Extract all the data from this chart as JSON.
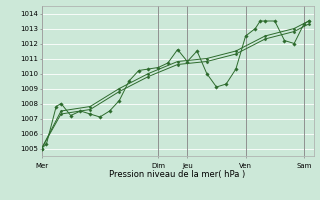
{
  "title": "Pression niveau de la mer( hPa )",
  "bg_color": "#cce8d8",
  "grid_color": "#ffffff",
  "line_color": "#2d6b2d",
  "ylim": [
    1004.5,
    1014.5
  ],
  "yticks": [
    1005,
    1006,
    1007,
    1008,
    1009,
    1010,
    1011,
    1012,
    1013,
    1014
  ],
  "day_labels": [
    "Mer",
    "",
    "Dim",
    "Jeu",
    "",
    "Ven",
    "",
    "Sam"
  ],
  "day_positions": [
    0,
    6,
    12,
    15,
    18,
    21,
    24,
    27
  ],
  "vline_positions": [
    0,
    12,
    15,
    21,
    27
  ],
  "line1_x": [
    0,
    0.5,
    1.5,
    2,
    3,
    4,
    5,
    6,
    7,
    8,
    9,
    10,
    11,
    12,
    13,
    14,
    15,
    16,
    17,
    18,
    19,
    20,
    21,
    22,
    22.5,
    23,
    24,
    25,
    26,
    27,
    27.5
  ],
  "line1_y": [
    1005.0,
    1005.3,
    1007.8,
    1008.0,
    1007.2,
    1007.5,
    1007.3,
    1007.1,
    1007.5,
    1008.2,
    1009.5,
    1010.2,
    1010.3,
    1010.4,
    1010.7,
    1011.6,
    1010.8,
    1011.5,
    1010.0,
    1009.1,
    1009.3,
    1010.3,
    1012.5,
    1013.0,
    1013.5,
    1013.5,
    1013.5,
    1012.2,
    1012.0,
    1013.3,
    1013.5
  ],
  "line2_x": [
    0,
    2,
    5,
    8,
    11,
    14,
    17,
    20,
    23,
    26,
    27.5
  ],
  "line2_y": [
    1005.0,
    1007.5,
    1007.8,
    1009.0,
    1010.0,
    1010.8,
    1011.0,
    1011.5,
    1012.5,
    1013.0,
    1013.5
  ],
  "line3_x": [
    0,
    2,
    5,
    8,
    11,
    14,
    17,
    20,
    23,
    26,
    27.5
  ],
  "line3_y": [
    1005.0,
    1007.3,
    1007.6,
    1008.8,
    1009.8,
    1010.6,
    1010.8,
    1011.3,
    1012.3,
    1012.8,
    1013.3
  ],
  "npoints": 28,
  "xlabel_fontsize": 6.0,
  "tick_fontsize": 5.0
}
